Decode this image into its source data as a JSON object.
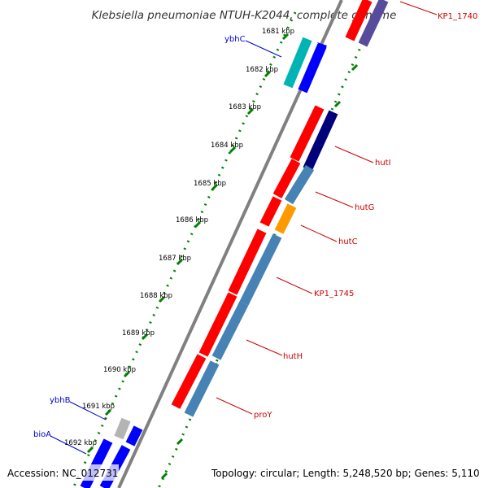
{
  "title": "Klebsiella pneumoniae NTUH-K2044, complete genome",
  "footer": {
    "accession": "Accession: NC_012731",
    "summary": "Topology: circular; Length: 5,248,520 bp; Genes: 5,110"
  },
  "ticks": [
    "1681 kbp",
    "1682 kbp",
    "1683 kbp",
    "1684 kbp",
    "1685 kbp",
    "1686 kbp",
    "1687 kbp",
    "1688 kbp",
    "1689 kbp",
    "1690 kbp",
    "1691 kbp",
    "1692 kbp"
  ],
  "colors": {
    "forward_cds": "#ff0000",
    "reverse_cds": "#0000ff",
    "blast_hit": "#4682b4",
    "teal_hit": "#00b4b4",
    "orange_hit": "#ff9900",
    "navy_hit": "#00007b",
    "purple_hit": "#574b9c",
    "gray_feature": "#b4b4b4",
    "backbone": "#808080",
    "tick_dots": "#008000",
    "label_red": "#cc0000",
    "label_blue": "#0000cc"
  },
  "gene_labels": [
    {
      "text": "KP1_1740",
      "color": "red"
    },
    {
      "text": "ybhC",
      "color": "blue"
    },
    {
      "text": "hutI",
      "color": "red"
    },
    {
      "text": "hutG",
      "color": "red"
    },
    {
      "text": "hutC",
      "color": "red"
    },
    {
      "text": "KP1_1745",
      "color": "red"
    },
    {
      "text": "hutH",
      "color": "red"
    },
    {
      "text": "proY",
      "color": "red"
    },
    {
      "text": "ybhB",
      "color": "blue"
    },
    {
      "text": "bioA",
      "color": "blue"
    }
  ]
}
